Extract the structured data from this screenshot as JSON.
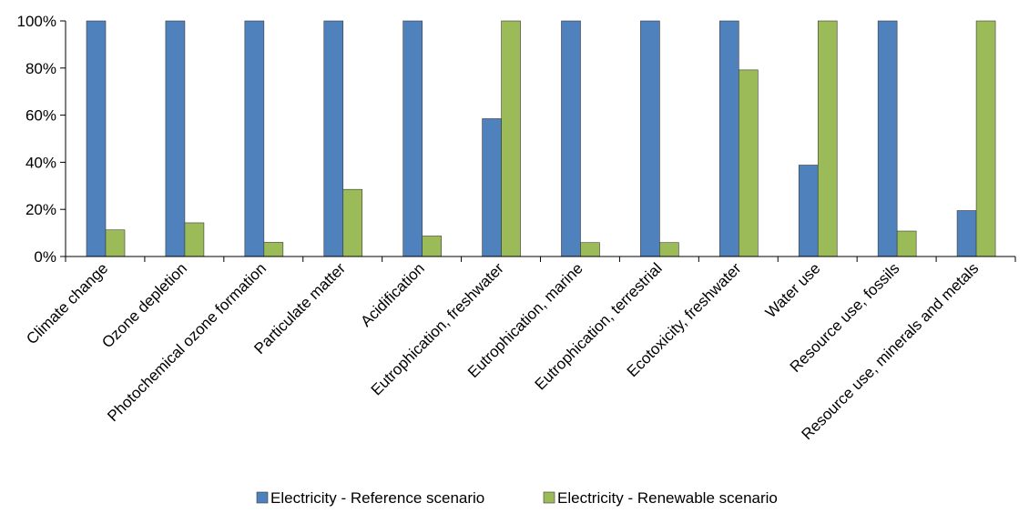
{
  "chart_data": {
    "type": "bar",
    "categories": [
      "Climate change",
      "Ozone depletion",
      "Photochemical ozone formation",
      "Particulate matter",
      "Acidification",
      "Eutrophication, freshwater",
      "Eutrophication, marine",
      "Eutrophication, terrestrial",
      "Ecotoxicity, freshwater",
      "Water use",
      "Resource use, fossils",
      "Resource use, minerals and metals"
    ],
    "series": [
      {
        "name": "Electricity - Reference scenario",
        "color": "#4f81bd",
        "values": [
          100,
          100,
          100,
          100,
          100,
          58.5,
          100,
          100,
          100,
          38.8,
          100,
          19.5
        ]
      },
      {
        "name": "Electricity - Renewable scenario",
        "color": "#9bbb59",
        "values": [
          11.3,
          14.3,
          6.0,
          28.5,
          8.7,
          100,
          5.9,
          5.9,
          79.2,
          100,
          10.8,
          100
        ]
      }
    ],
    "y_ticks": [
      "0%",
      "20%",
      "40%",
      "60%",
      "80%",
      "100%"
    ],
    "y_tick_values": [
      0,
      20,
      40,
      60,
      80,
      100
    ],
    "ylim": [
      0,
      100
    ],
    "title": "",
    "xlabel": "",
    "ylabel": "",
    "grid": false,
    "legend_position": "bottom"
  }
}
